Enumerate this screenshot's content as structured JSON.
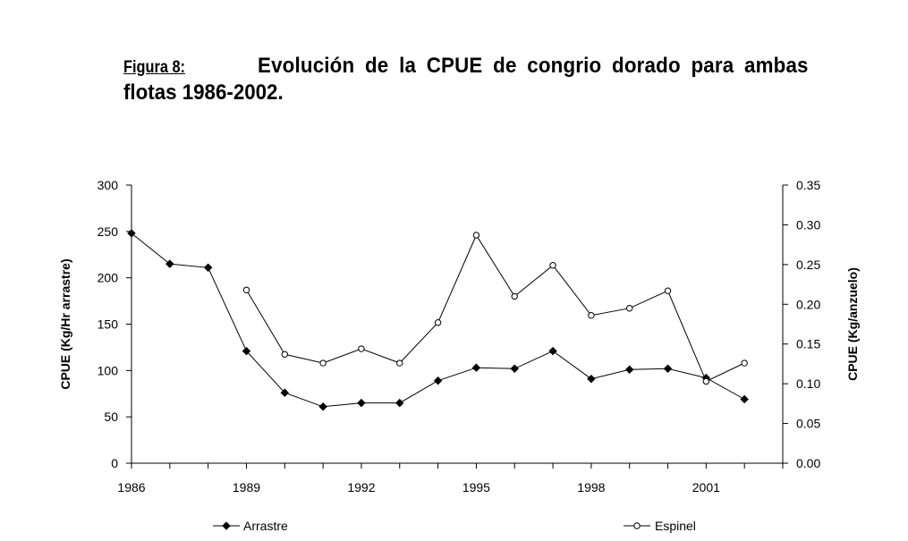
{
  "caption": {
    "label": "Figura 8:",
    "title_line1": "Evolución de la CPUE de congrio dorado para ambas",
    "title_line2": "flotas 1986-2002."
  },
  "chart_data": {
    "type": "line",
    "title": "Evolución de la CPUE de congrio dorado para ambas flotas 1986-2002.",
    "xlabel": "",
    "ylabel": "CPUE (Kg/Hr arrastre)",
    "y2label": "CPUE (Kg/anzuelo)",
    "xlim": [
      1986,
      2003
    ],
    "ylim": [
      0,
      300
    ],
    "y2lim": [
      0,
      0.35
    ],
    "x_ticks": [
      1986,
      1987,
      1988,
      1989,
      1990,
      1991,
      1992,
      1993,
      1994,
      1995,
      1996,
      1997,
      1998,
      1999,
      2000,
      2001,
      2002
    ],
    "x_tick_labels": [
      "1986",
      "1989",
      "1992",
      "1995",
      "1998",
      "2001"
    ],
    "x_tick_label_values": [
      1986,
      1989,
      1992,
      1995,
      1998,
      2001
    ],
    "y_ticks": [
      0,
      50,
      100,
      150,
      200,
      250,
      300
    ],
    "y_tick_labels": [
      "0",
      "50",
      "100",
      "150",
      "200",
      "250",
      "300"
    ],
    "y2_ticks": [
      0,
      0.05,
      0.1,
      0.15,
      0.2,
      0.25,
      0.3,
      0.35
    ],
    "y2_tick_labels": [
      "0.00",
      "0.05",
      "0.10",
      "0.15",
      "0.20",
      "0.25",
      "0.30",
      "0.35"
    ],
    "grid": false,
    "legend_position": "bottom",
    "series": [
      {
        "name": "Arrastre",
        "axis": "left",
        "marker": "filled-diamond",
        "color": "#000000",
        "x": [
          1986,
          1987,
          1988,
          1989,
          1990,
          1991,
          1992,
          1993,
          1994,
          1995,
          1996,
          1997,
          1998,
          1999,
          2000,
          2001,
          2002
        ],
        "values": [
          248,
          215,
          211,
          121,
          76,
          61,
          65,
          65,
          89,
          103,
          102,
          121,
          91,
          101,
          102,
          92,
          69
        ]
      },
      {
        "name": "Espinel",
        "axis": "right",
        "marker": "open-circle",
        "color": "#000000",
        "x": [
          1989,
          1990,
          1991,
          1992,
          1993,
          1994,
          1995,
          1996,
          1997,
          1998,
          1999,
          2000,
          2001,
          2002
        ],
        "values": [
          0.218,
          0.137,
          0.126,
          0.144,
          0.126,
          0.177,
          0.287,
          0.21,
          0.249,
          0.186,
          0.195,
          0.217,
          0.103,
          0.126
        ]
      }
    ]
  }
}
